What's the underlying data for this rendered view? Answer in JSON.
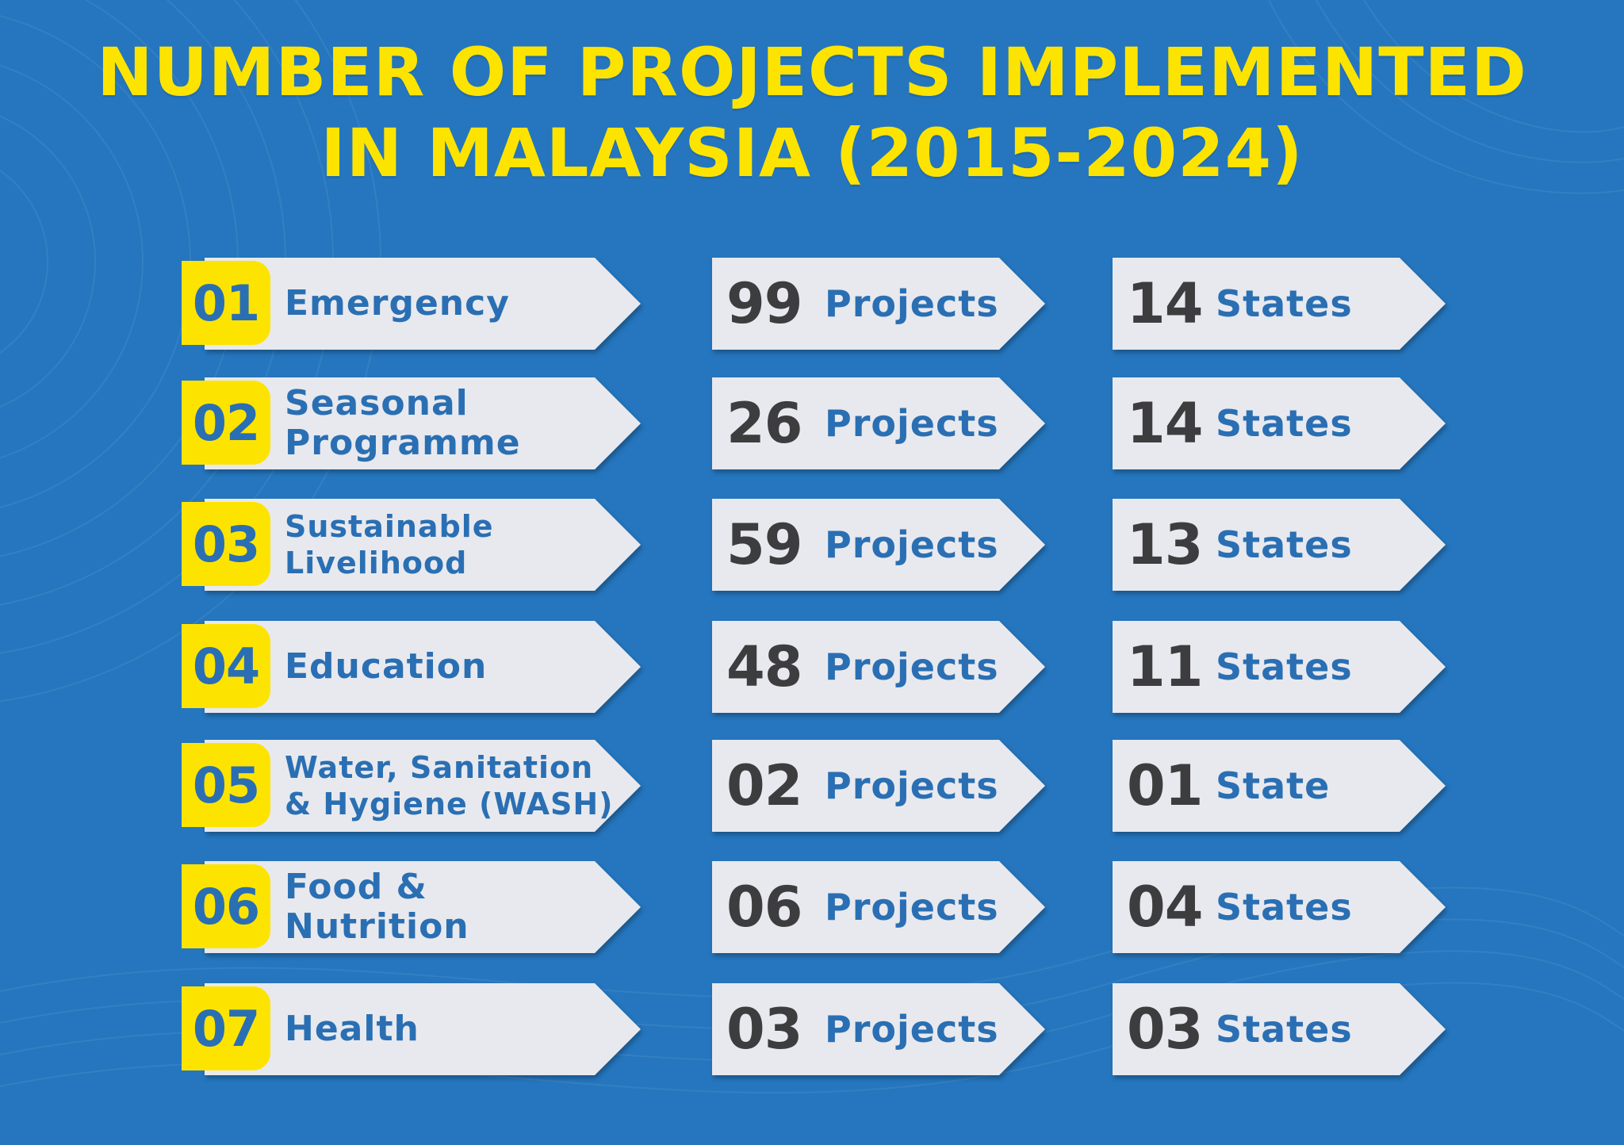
{
  "title": {
    "line1": "NUMBER OF PROJECTS IMPLEMENTED",
    "line2": "IN MALAYSIA (2015-2024)"
  },
  "colors": {
    "background": "#2576be",
    "title": "#fde400",
    "badge": "#fde400",
    "card": "#e8e9ee",
    "label": "#2a6fb3",
    "number": "#3d3d40"
  },
  "rows": [
    {
      "num": "01",
      "category": "Emergency",
      "projects": "99",
      "projects_unit": "Projects",
      "states": "14",
      "states_unit": "States"
    },
    {
      "num": "02",
      "category": "Seasonal\nProgramme",
      "projects": "26",
      "projects_unit": "Projects",
      "states": "14",
      "states_unit": "States"
    },
    {
      "num": "03",
      "category": "Sustainable\nLivelihood",
      "projects": "59",
      "projects_unit": "Projects",
      "states": "13",
      "states_unit": "States"
    },
    {
      "num": "04",
      "category": "Education",
      "projects": "48",
      "projects_unit": "Projects",
      "states": "11",
      "states_unit": "States"
    },
    {
      "num": "05",
      "category": "Water, Sanitation\n& Hygiene (WASH)",
      "projects": "02",
      "projects_unit": "Projects",
      "states": "01",
      "states_unit": "State"
    },
    {
      "num": "06",
      "category": "Food &\nNutrition",
      "projects": "06",
      "projects_unit": "Projects",
      "states": "04",
      "states_unit": "States"
    },
    {
      "num": "07",
      "category": "Health",
      "projects": "03",
      "projects_unit": "Projects",
      "states": "03",
      "states_unit": "States"
    }
  ]
}
